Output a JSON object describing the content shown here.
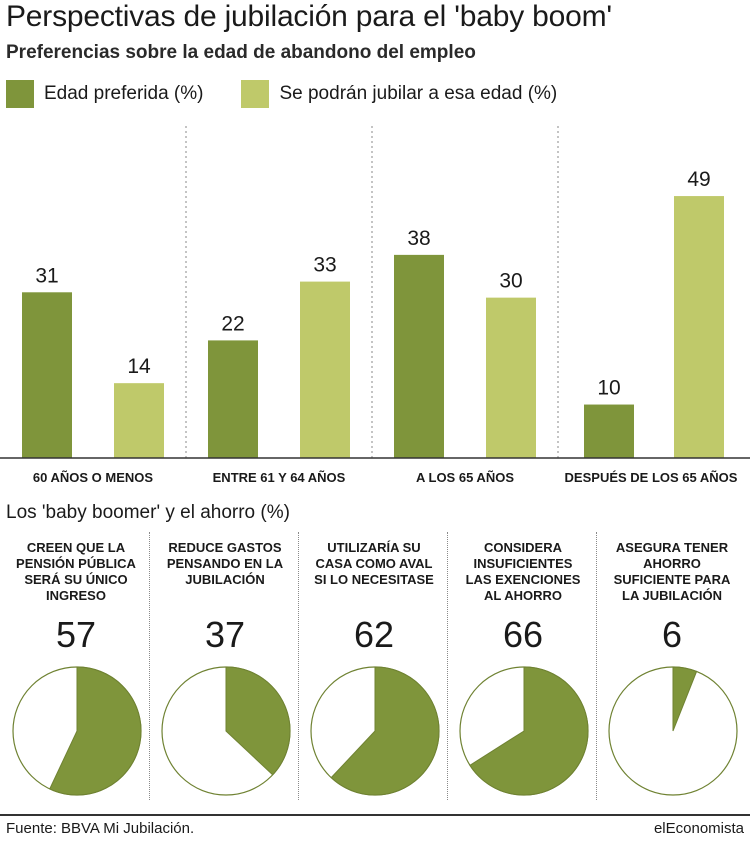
{
  "header": {
    "title": "Perspectivas de jubilación para el 'baby boom'",
    "subtitle": "Preferencias sobre la edad de abandono del empleo"
  },
  "colors": {
    "dark_green": "#7f953b",
    "light_green": "#bfc96a",
    "pie_fill": "#7f953b",
    "pie_stroke": "#6f8232"
  },
  "chart_data": [
    {
      "type": "bar",
      "categories": [
        "60 AÑOS O MENOS",
        "ENTRE 61 Y 64 AÑOS",
        "A LOS 65 AÑOS",
        "DESPUÉS DE LOS 65 AÑOS"
      ],
      "series": [
        {
          "name": "Edad preferida (%)",
          "values": [
            31,
            22,
            38,
            10
          ]
        },
        {
          "name": "Se podrán jubilar a esa edad (%)",
          "values": [
            14,
            33,
            30,
            49
          ]
        }
      ],
      "ylim": [
        0,
        55
      ],
      "grid": false,
      "legend": "top"
    },
    {
      "type": "pie",
      "title": "Los 'baby boomer' y el ahorro (%)",
      "items": [
        {
          "label": "CREEN QUE LA PENSIÓN PÚBLICA SERÁ SU ÚNICO INGRESO",
          "lines": [
            "CREEN QUE LA",
            "PENSIÓN PÚBLICA",
            "SERÁ SU ÚNICO",
            "INGRESO"
          ],
          "value": 57
        },
        {
          "label": "REDUCE GASTOS PENSANDO EN LA JUBILACIÓN",
          "lines": [
            "REDUCE GASTOS",
            "PENSANDO EN LA",
            "JUBILACIÓN"
          ],
          "value": 37
        },
        {
          "label": "UTILIZARÍA SU CASA COMO AVAL SI LO NECESITASE",
          "lines": [
            "UTILIZARÍA SU",
            "CASA COMO AVAL",
            "SI LO NECESITASE"
          ],
          "value": 62
        },
        {
          "label": "CONSIDERA INSUFICIENTES LAS EXENCIONES AL AHORRO",
          "lines": [
            "CONSIDERA",
            "INSUFICIENTES",
            "LAS EXENCIONES",
            "AL AHORRO"
          ],
          "value": 66
        },
        {
          "label": "ASEGURA TENER AHORRO SUFICIENTE PARA LA JUBILACIÓN",
          "lines": [
            "ASEGURA TENER",
            "AHORRO",
            "SUFICIENTE PARA",
            "LA JUBILACIÓN"
          ],
          "value": 6
        }
      ]
    }
  ],
  "footer": {
    "source": "Fuente: BBVA Mi Jubilación.",
    "brand": "elEconomista"
  }
}
